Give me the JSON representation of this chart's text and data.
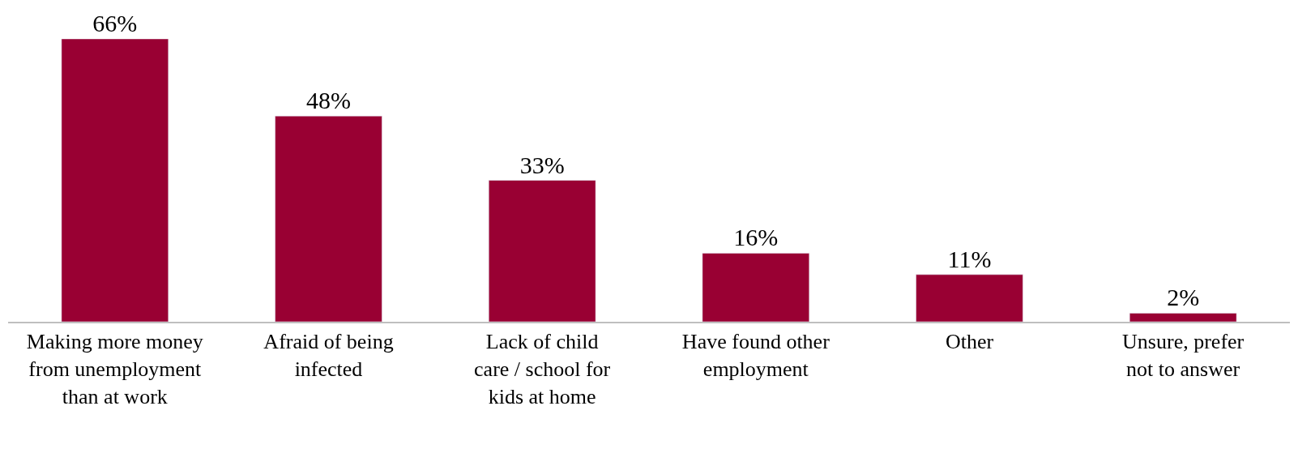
{
  "chart_data": {
    "type": "bar",
    "categories": [
      "Making more money from unemployment than at work",
      "Afraid of being infected",
      "Lack of child care / school for kids at home",
      "Have found other employment",
      "Other",
      "Unsure, prefer not to answer"
    ],
    "values": [
      66,
      48,
      33,
      16,
      11,
      2
    ],
    "value_labels": [
      "66%",
      "48%",
      "33%",
      "16%",
      "11%",
      "2%"
    ],
    "color": "#990033",
    "ylim": [
      0,
      66
    ],
    "tick_labels": "x"
  }
}
